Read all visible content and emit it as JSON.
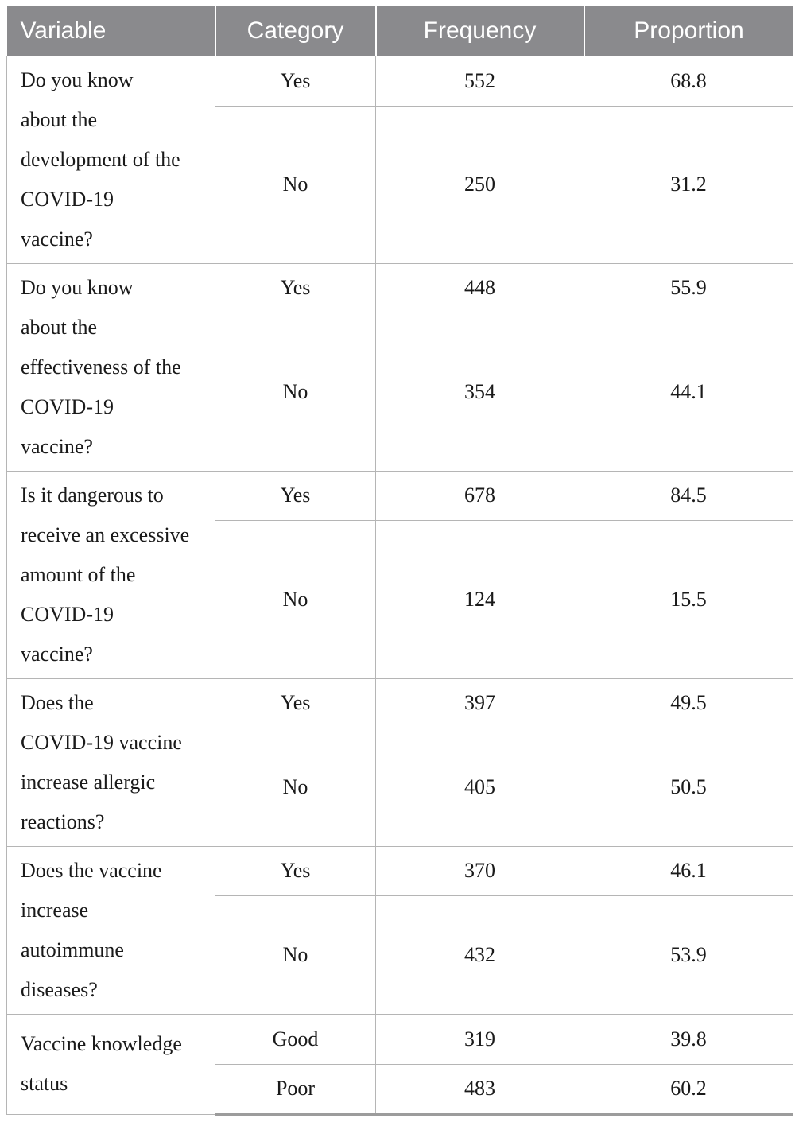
{
  "header": {
    "columns": [
      "Variable",
      "Category",
      "Frequency",
      "Proportion"
    ]
  },
  "table": {
    "groups": [
      {
        "variable": "Do you know about the development of the COVID-19 vaccine?",
        "variable_lines": [
          "Do you know",
          "about the",
          "development of the",
          "COVID-19",
          "vaccine?"
        ],
        "rows": [
          {
            "category": "Yes",
            "frequency": "552",
            "proportion": "68.8"
          },
          {
            "category": "No",
            "frequency": "250",
            "proportion": "31.2"
          }
        ]
      },
      {
        "variable": "Do you know about the effectiveness of the COVID-19 vaccine?",
        "variable_lines": [
          "Do you know",
          "about the",
          "effectiveness of the",
          "COVID-19",
          "vaccine?"
        ],
        "rows": [
          {
            "category": "Yes",
            "frequency": "448",
            "proportion": "55.9"
          },
          {
            "category": "No",
            "frequency": "354",
            "proportion": "44.1"
          }
        ]
      },
      {
        "variable": "Is it dangerous to receive an excessive amount of the COVID-19 vaccine?",
        "variable_lines": [
          "Is it dangerous to",
          "receive an excessive",
          "amount of the",
          "COVID-19",
          "vaccine?"
        ],
        "rows": [
          {
            "category": "Yes",
            "frequency": "678",
            "proportion": "84.5"
          },
          {
            "category": "No",
            "frequency": "124",
            "proportion": "15.5"
          }
        ]
      },
      {
        "variable": "Does the COVID-19 vaccine increase allergic reactions?",
        "variable_lines": [
          "Does the",
          "COVID-19 vaccine",
          "increase allergic",
          "reactions?"
        ],
        "rows": [
          {
            "category": "Yes",
            "frequency": "397",
            "proportion": "49.5"
          },
          {
            "category": "No",
            "frequency": "405",
            "proportion": "50.5"
          }
        ]
      },
      {
        "variable": "Does the vaccine increase autoimmune diseases?",
        "variable_lines": [
          "Does the vaccine",
          "increase",
          "autoimmune",
          "diseases?"
        ],
        "rows": [
          {
            "category": "Yes",
            "frequency": "370",
            "proportion": "46.1"
          },
          {
            "category": "No",
            "frequency": "432",
            "proportion": "53.9"
          }
        ]
      },
      {
        "variable": "Vaccine knowledge status",
        "variable_lines": [
          "Vaccine knowledge",
          "status"
        ],
        "rows": [
          {
            "category": "Good",
            "frequency": "319",
            "proportion": "39.8"
          },
          {
            "category": "Poor",
            "frequency": "483",
            "proportion": "60.2"
          }
        ]
      }
    ]
  },
  "colors": {
    "header_bg": "#8a8a8d",
    "header_text": "#ffffff",
    "border": "#b5b5b5",
    "body_text": "#1a1a1a"
  }
}
